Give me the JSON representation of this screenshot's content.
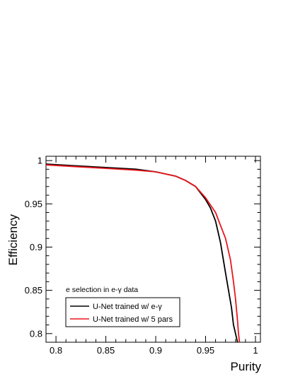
{
  "chart_data": {
    "type": "line",
    "title": "",
    "xlabel": "Purity",
    "ylabel": "Efficiency",
    "xlim": [
      0.79,
      1.005
    ],
    "ylim": [
      0.79,
      1.005
    ],
    "xticks": [
      0.8,
      0.85,
      0.9,
      0.95,
      1
    ],
    "xtick_labels": [
      "0.8",
      "0.85",
      "0.9",
      "0.95",
      "1"
    ],
    "yticks": [
      0.8,
      0.85,
      0.9,
      0.95,
      1
    ],
    "ytick_labels": [
      "0.8",
      "0.85",
      "0.9",
      "0.95",
      "1"
    ],
    "grid": false,
    "annotation": "e selection in e-γ data",
    "legend_position": "bottom-left",
    "series": [
      {
        "name": "U-Net trained w/ e-γ",
        "color": "#000000",
        "x": [
          0.79,
          0.82,
          0.85,
          0.88,
          0.9,
          0.92,
          0.93,
          0.94,
          0.95,
          0.955,
          0.96,
          0.965,
          0.97,
          0.973,
          0.976,
          0.978,
          0.98,
          0.982
        ],
        "y": [
          0.996,
          0.994,
          0.992,
          0.99,
          0.987,
          0.982,
          0.977,
          0.97,
          0.955,
          0.945,
          0.93,
          0.905,
          0.87,
          0.85,
          0.83,
          0.81,
          0.8,
          0.79
        ]
      },
      {
        "name": "U-Net trained w/ 5 pars",
        "color": "#e8161c",
        "x": [
          0.79,
          0.82,
          0.85,
          0.88,
          0.9,
          0.92,
          0.93,
          0.94,
          0.95,
          0.96,
          0.965,
          0.97,
          0.975,
          0.978,
          0.98,
          0.982,
          0.983,
          0.984
        ],
        "y": [
          0.995,
          0.993,
          0.991,
          0.989,
          0.987,
          0.982,
          0.977,
          0.97,
          0.957,
          0.94,
          0.925,
          0.91,
          0.885,
          0.86,
          0.84,
          0.815,
          0.8,
          0.79
        ]
      }
    ]
  }
}
